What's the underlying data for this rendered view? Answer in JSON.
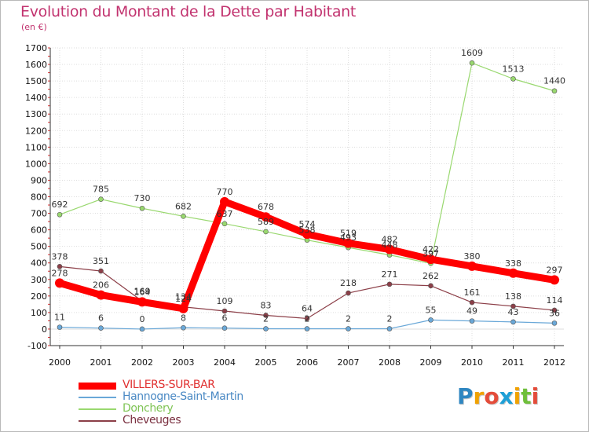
{
  "chart_data": {
    "type": "line",
    "title": "Evolution du Montant de la Dette par Habitant",
    "subtitle": "(en €)",
    "x": [
      "2000",
      "2001",
      "2002",
      "2003",
      "2004",
      "2005",
      "2006",
      "2007",
      "2008",
      "2009",
      "2010",
      "2011",
      "2012"
    ],
    "ylim": [
      -100,
      1700
    ],
    "yticks": [
      -100,
      0,
      100,
      200,
      300,
      400,
      500,
      600,
      700,
      800,
      900,
      1000,
      1100,
      1200,
      1300,
      1400,
      1500,
      1600,
      1700
    ],
    "grid": true,
    "legend_position": "bottom-left",
    "series": [
      {
        "name": "VILLERS-SUR-BAR",
        "color": "#ff0000",
        "values": [
          278,
          206,
          164,
          124,
          770,
          678,
          574,
          519,
          482,
          422,
          380,
          338,
          297
        ]
      },
      {
        "name": "Hannogne-Saint-Martin",
        "color": "#6aa8d8",
        "values": [
          11,
          6,
          0,
          8,
          6,
          2,
          2,
          2,
          2,
          55,
          49,
          43,
          36
        ]
      },
      {
        "name": "Donchery",
        "color": "#99d86f",
        "values": [
          692,
          785,
          730,
          682,
          637,
          589,
          538,
          493,
          448,
          397,
          1609,
          1513,
          1440
        ]
      },
      {
        "name": "Cheveuges",
        "color": "#8c3f48",
        "values": [
          378,
          351,
          169,
          134,
          109,
          83,
          64,
          218,
          271,
          262,
          161,
          138,
          114
        ]
      }
    ]
  },
  "logo": {
    "letters": [
      {
        "char": "P",
        "color": "#2e86c1"
      },
      {
        "char": "r",
        "color": "#f0a202"
      },
      {
        "char": "o",
        "color": "#e44c3a"
      },
      {
        "char": "x",
        "color": "#1e9fd6"
      },
      {
        "char": "i",
        "color": "#f0a202"
      },
      {
        "char": "t",
        "color": "#6fbf3b"
      },
      {
        "char": "i",
        "color": "#e44c3a"
      }
    ]
  }
}
